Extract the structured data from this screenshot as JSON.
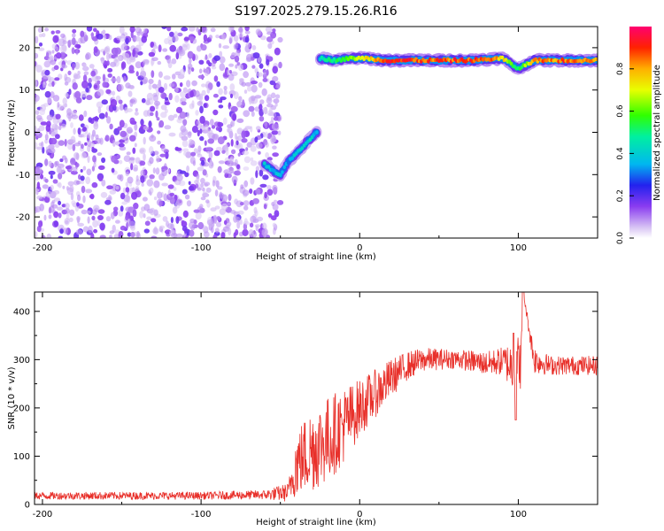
{
  "title": "S197.2025.279.15.26.R16",
  "chart_data": [
    {
      "type": "heatmap",
      "title": "S197.2025.279.15.26.R16",
      "xlabel": "Height of straight line (km)",
      "ylabel": "Frequency (Hz)",
      "xlim": [
        -205,
        150
      ],
      "ylim": [
        -25,
        25
      ],
      "xticks": [
        -200,
        -100,
        0,
        100
      ],
      "yticks": [
        -20,
        -10,
        0,
        10,
        20
      ],
      "x_ticks_text": [
        "-200",
        "-100",
        "0",
        "100"
      ],
      "y_ticks_text": [
        "-20",
        "-10",
        "0",
        "10",
        "20"
      ],
      "noise_region": {
        "x": [
          -205,
          -50
        ],
        "y": [
          -25,
          25
        ],
        "amplitude": [
          0.0,
          0.2
        ]
      },
      "signal_track": [
        {
          "x": -60,
          "y": -7.5,
          "amp": 0.45
        },
        {
          "x": -55,
          "y": -9,
          "amp": 0.35
        },
        {
          "x": -50,
          "y": -10,
          "amp": 0.4
        },
        {
          "x": -45,
          "y": -7,
          "amp": 0.35
        },
        {
          "x": -40,
          "y": -5,
          "amp": 0.45
        },
        {
          "x": -35,
          "y": -3,
          "amp": 0.4
        },
        {
          "x": -30,
          "y": -1,
          "amp": 0.45
        },
        {
          "x": -27,
          "y": 0,
          "amp": 0.35
        },
        {
          "x": -25,
          "y": 17.5,
          "amp": 0.45
        },
        {
          "x": -15,
          "y": 17,
          "amp": 0.55
        },
        {
          "x": -5,
          "y": 17.5,
          "amp": 0.65
        },
        {
          "x": 5,
          "y": 17.5,
          "amp": 0.75
        },
        {
          "x": 15,
          "y": 17,
          "amp": 0.9
        },
        {
          "x": 30,
          "y": 17,
          "amp": 0.95
        },
        {
          "x": 50,
          "y": 17,
          "amp": 0.9
        },
        {
          "x": 70,
          "y": 17,
          "amp": 0.95
        },
        {
          "x": 90,
          "y": 17.5,
          "amp": 0.8
        },
        {
          "x": 100,
          "y": 15,
          "amp": 0.5
        },
        {
          "x": 110,
          "y": 17,
          "amp": 0.85
        },
        {
          "x": 130,
          "y": 17,
          "amp": 0.9
        },
        {
          "x": 150,
          "y": 17,
          "amp": 0.85
        }
      ],
      "colorbar": {
        "label": "Normalized spectral amplitude",
        "range": [
          0.0,
          1.0
        ],
        "ticks": [
          "0.0",
          "0.2",
          "0.4",
          "0.6",
          "0.8"
        ],
        "tick_values": [
          0.0,
          0.2,
          0.4,
          0.6,
          0.8
        ]
      }
    },
    {
      "type": "line",
      "xlabel": "Height of straight line (km)",
      "ylabel": "SNR (10 * v/v)",
      "xlim": [
        -205,
        150
      ],
      "ylim": [
        0,
        440
      ],
      "xticks": [
        -200,
        -100,
        0,
        100
      ],
      "yticks": [
        0,
        100,
        200,
        300,
        400
      ],
      "x_ticks_text": [
        "-200",
        "-100",
        "0",
        "100"
      ],
      "y_ticks_text": [
        "0",
        "100",
        "200",
        "300",
        "400"
      ],
      "series": [
        {
          "name": "SNR",
          "color": "#e8302a",
          "x": [
            -205,
            -150,
            -100,
            -60,
            -45,
            -40,
            -30,
            -20,
            -10,
            0,
            10,
            20,
            30,
            40,
            60,
            80,
            90,
            98,
            102,
            103,
            110,
            120,
            150
          ],
          "y": [
            18,
            18,
            18,
            20,
            25,
            85,
            115,
            135,
            165,
            200,
            230,
            262,
            287,
            300,
            302,
            292,
            297,
            285,
            300,
            440,
            300,
            288,
            288
          ],
          "noise_amplitude": [
            8,
            8,
            8,
            10,
            20,
            70,
            90,
            90,
            80,
            60,
            50,
            40,
            30,
            25,
            20,
            25,
            30,
            60,
            60,
            0,
            30,
            20,
            20
          ]
        }
      ]
    }
  ]
}
